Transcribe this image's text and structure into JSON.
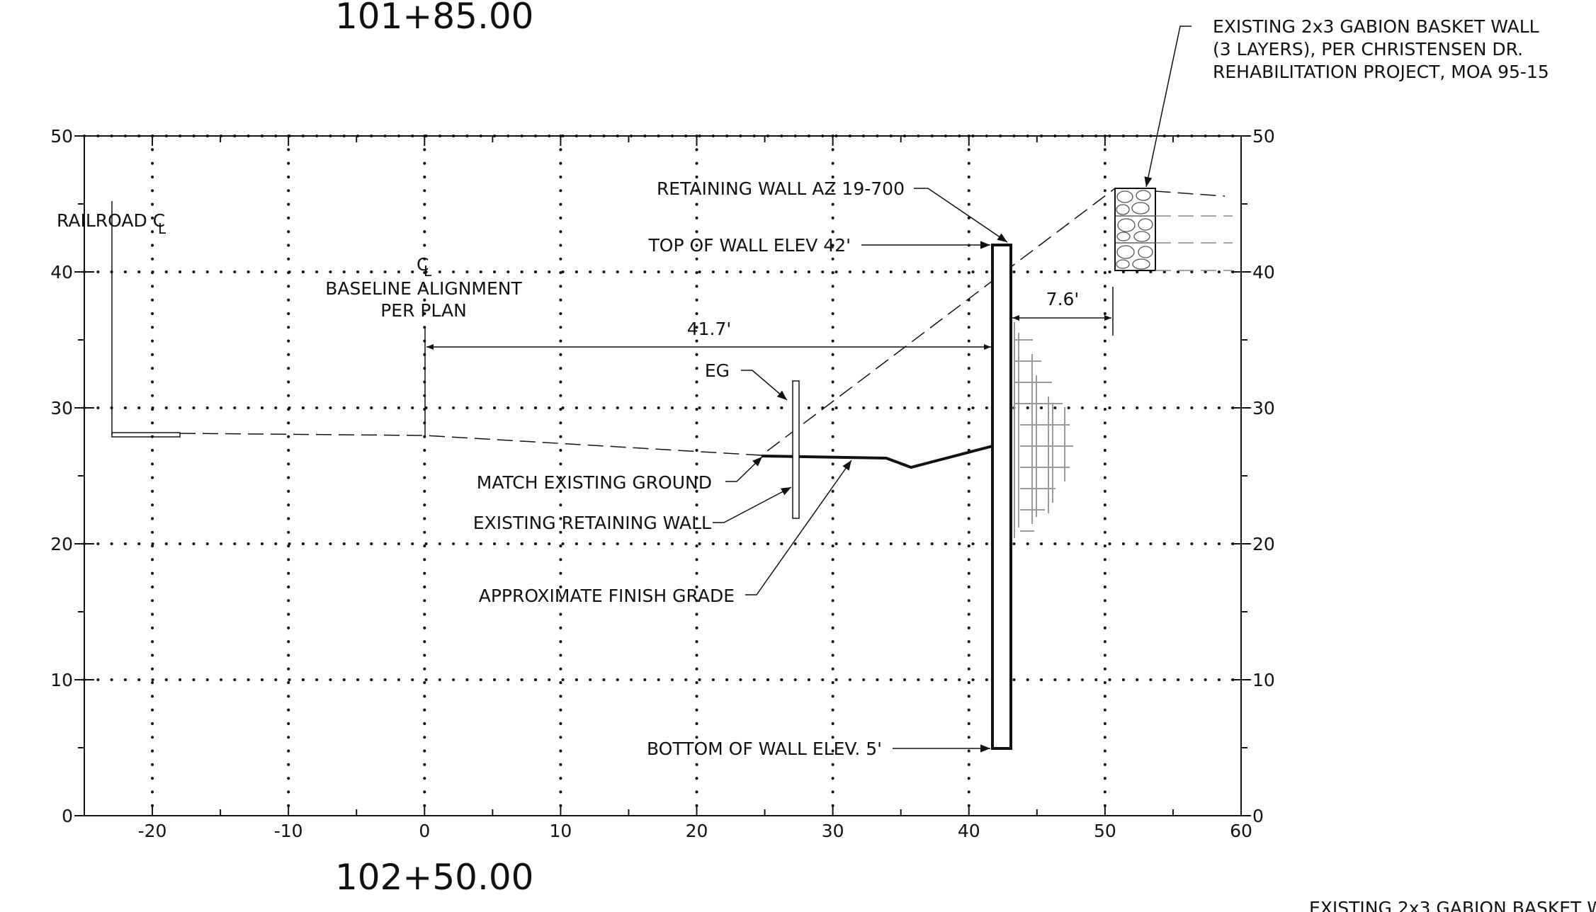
{
  "stations": {
    "top": "101+85.00",
    "bottom": "102+50.00"
  },
  "axes": {
    "x_ticks": [
      "-20",
      "-10",
      "0",
      "10",
      "20",
      "30",
      "40",
      "50",
      "60"
    ],
    "y_ticks": [
      "0",
      "10",
      "20",
      "30",
      "40",
      "50"
    ]
  },
  "labels": {
    "railroad": "RAILROAD C",
    "cl_symbol": "L",
    "baseline_cl": "C",
    "baseline_line1": "BASELINE ALIGNMENT",
    "baseline_line2": "PER PLAN",
    "retaining_wall": "RETAINING WALL AZ 19-700",
    "top_of_wall": "TOP OF  WALL ELEV 42'",
    "eg": "EG",
    "match_existing": "MATCH EXISTING GROUND",
    "existing_wall": "EXISTING RETAINING WALL",
    "finish_grade": "APPROXIMATE FINISH GRADE",
    "bottom_of_wall": "BOTTOM OF WALL ELEV. 5'",
    "gabion_line1": "EXISTING 2x3 GABION BASKET WALL",
    "gabion_line2": "(3 LAYERS), PER CHRISTENSEN DR.",
    "gabion_line3": "REHABILITATION PROJECT, MOA 95-15",
    "gabion_clipped": "EXISTING 2x3 GABION BASKET W"
  },
  "dimensions": {
    "baseline_to_wall": "41.7'",
    "wall_to_gabion": "7.6'"
  },
  "chart_data": {
    "type": "cross-section",
    "xlim": [
      -25,
      60
    ],
    "ylim": [
      0,
      50
    ],
    "grid": "dotted",
    "retaining_wall": {
      "x_left": 41.7,
      "x_right": 43,
      "top_elev": 42,
      "bottom_elev": 5
    },
    "existing_ground": [
      [
        -23.8,
        28.2
      ],
      [
        0,
        28.0
      ],
      [
        25,
        26.5
      ],
      [
        41.8,
        42.0
      ],
      [
        50.5,
        46.2
      ],
      [
        59,
        45.5
      ]
    ],
    "finish_grade": [
      [
        25,
        26.5
      ],
      [
        34,
        26.3
      ],
      [
        35.8,
        25.7
      ],
      [
        41.7,
        27.2
      ]
    ],
    "existing_retaining_wall": {
      "x": 27.3,
      "top_elev": 32,
      "bottom_elev": 22
    },
    "gabion_wall": {
      "x_left": 50.5,
      "x_right": 53.5,
      "bottom_elev": 40.2,
      "top_elev": 46.2,
      "layers": 3
    }
  }
}
